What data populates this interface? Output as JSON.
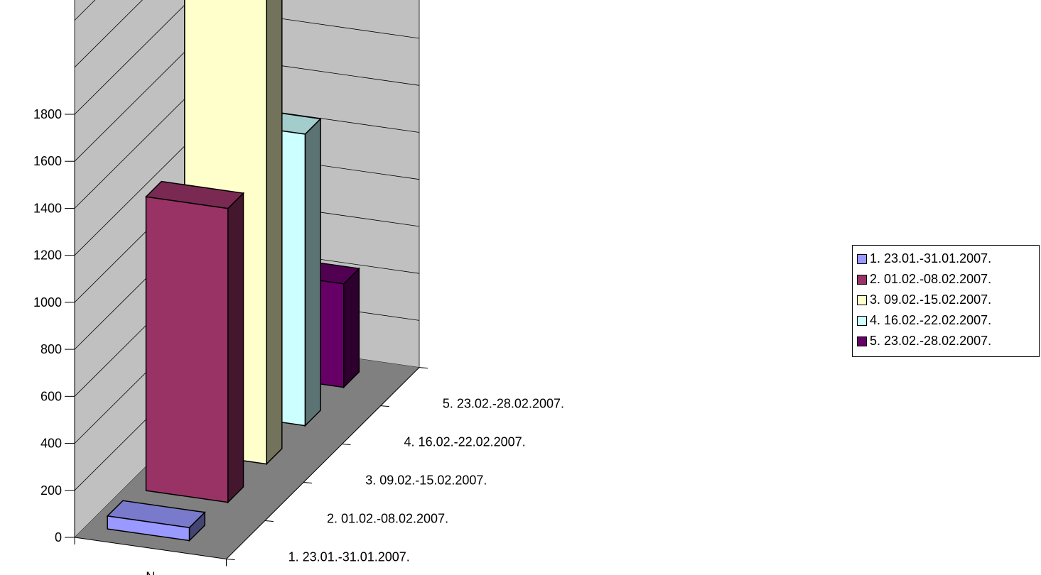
{
  "chart_data": {
    "type": "bar",
    "variant": "3d-column",
    "x_category": "N",
    "series": [
      {
        "name": "1. 23.01.-31.01.2007.",
        "value": 55,
        "color": "#9999FF"
      },
      {
        "name": "2. 01.02.-08.02.2007.",
        "value": 1250,
        "color": "#993366"
      },
      {
        "name": "3. 09.02.-15.02.2007.",
        "value": 2240,
        "color": "#FFFFCC"
      },
      {
        "name": "4. 16.02.-22.02.2007.",
        "value": 1240,
        "color": "#CCFFFF"
      },
      {
        "name": "5. 23.02.-28.02.2007.",
        "value": 440,
        "color": "#660066"
      }
    ],
    "y_ticks": [
      "0",
      "200",
      "400",
      "600",
      "800",
      "1000",
      "1200",
      "1400",
      "1600",
      "1800"
    ],
    "ylim": [
      0,
      2400
    ],
    "depth_labels": [
      "1. 23.01.-31.01.2007.",
      "2. 01.02.-08.02.2007.",
      "3. 09.02.-15.02.2007.",
      "4. 16.02.-22.02.2007.",
      "5. 23.02.-28.02.2007."
    ],
    "grid": true,
    "legend_position": "right"
  },
  "colors": {
    "wall": "#C0C0C0",
    "floor": "#808080",
    "gridline": "#000000"
  }
}
